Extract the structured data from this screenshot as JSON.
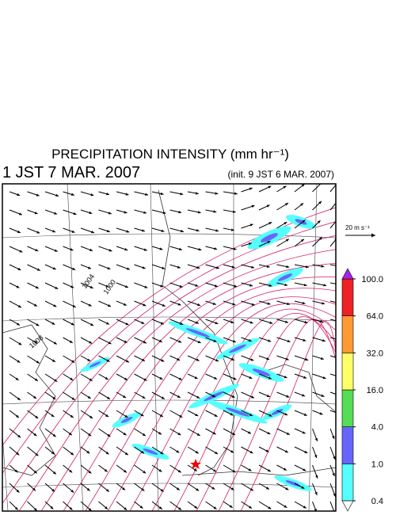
{
  "header": {
    "title": "PRECIPITATION INTENSITY (mm hr⁻¹)",
    "valid_time": "1 JST 7 MAR. 2007",
    "init_time": "(init. 9 JST 6 MAR. 2007)"
  },
  "wind_scale": "20 m s⁻¹",
  "colorbar": {
    "levels": [
      0.4,
      {
        "value": 1,
        "label": "1.0"
      },
      {
        "value": 4,
        "label": "4.0"
      },
      {
        "value": 16,
        "label": "16.0"
      },
      {
        "value": 32,
        "label": "32.0"
      },
      {
        "value": 64,
        "label": "64.0"
      },
      {
        "value": 100,
        "label": "100.0"
      }
    ],
    "colors": [
      "#55ffff",
      "#6666ff",
      "#55dd55",
      "#ffff66",
      "#ff9933",
      "#ee2222"
    ],
    "over_color": "#aa22ee",
    "under_color": "#ffffff"
  },
  "contour_labels": [
    "1004",
    "1000",
    "1008"
  ]
}
